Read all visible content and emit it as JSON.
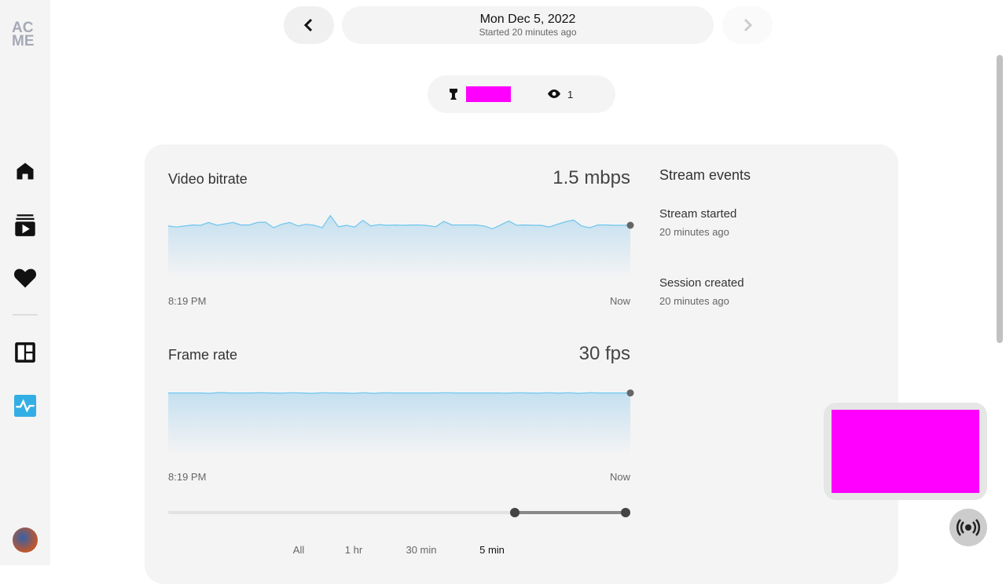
{
  "logo": "AC ME",
  "header": {
    "date": "Mon Dec 5, 2022",
    "started": "Started 20 minutes ago"
  },
  "stats": {
    "viewers": 1
  },
  "metrics": [
    {
      "title": "Video bitrate",
      "value": "1.5 mbps",
      "start_label": "8:19 PM",
      "end_label": "Now",
      "ylim": [
        0,
        1.9
      ],
      "values": [
        1.5,
        1.47,
        1.5,
        1.53,
        1.52,
        1.6,
        1.52,
        1.56,
        1.6,
        1.53,
        1.53,
        1.6,
        1.61,
        1.45,
        1.55,
        1.6,
        1.5,
        1.55,
        1.52,
        1.45,
        1.8,
        1.48,
        1.52,
        1.47,
        1.66,
        1.5,
        1.54,
        1.52,
        1.53,
        1.52,
        1.53,
        1.53,
        1.51,
        1.48,
        1.63,
        1.53,
        1.53,
        1.53,
        1.53,
        1.5,
        1.42,
        1.53,
        1.64,
        1.52,
        1.53,
        1.52,
        1.52,
        1.47,
        1.55,
        1.62,
        1.67,
        1.5,
        1.45,
        1.53,
        1.53,
        1.52,
        1.52,
        1.52
      ]
    },
    {
      "title": "Frame rate",
      "value": "30 fps",
      "start_label": "8:19 PM",
      "end_label": "Now",
      "ylim": [
        0,
        34
      ],
      "values": [
        30,
        30,
        30,
        30,
        29.8,
        30.2,
        30,
        30,
        30,
        30.1,
        30,
        29.9,
        30.1,
        30,
        29.8,
        30.1,
        30,
        30,
        29.8,
        30.1,
        29.8,
        30.1,
        30,
        30,
        30,
        30,
        30,
        30.1,
        30,
        30,
        30,
        30,
        30,
        29.9,
        30.1,
        30,
        29.9,
        30.1,
        29.9,
        30.1,
        29.8,
        30.1,
        30,
        30,
        30,
        30
      ]
    }
  ],
  "events": {
    "title": "Stream events",
    "items": [
      {
        "name": "Stream started",
        "time": "20 minutes ago"
      },
      {
        "name": "Session created",
        "time": "20 minutes ago"
      }
    ]
  },
  "ranges": [
    "All",
    "1 hr",
    "30 min",
    "5 min"
  ],
  "selected_range": 3
}
